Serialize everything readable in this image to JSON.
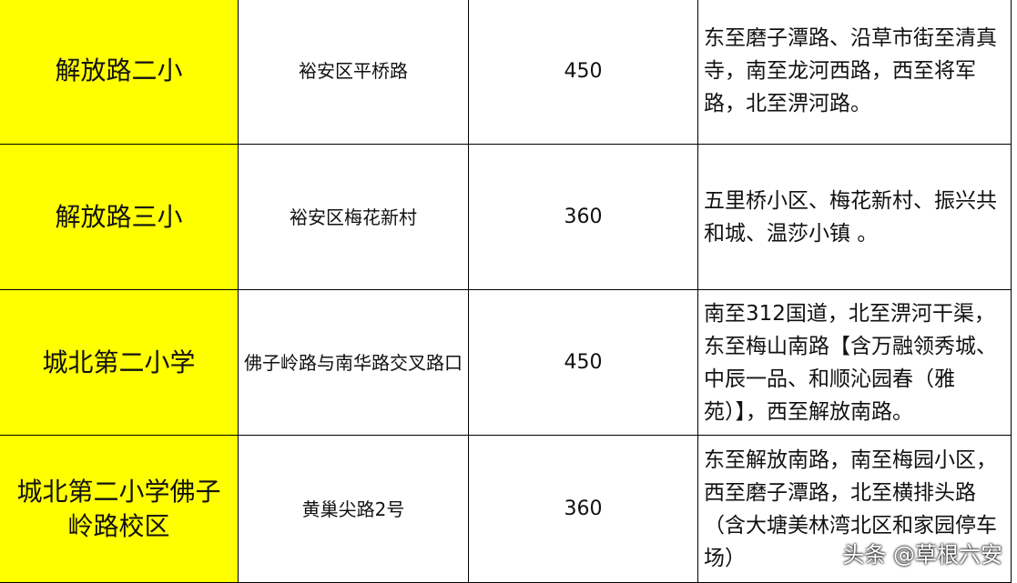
{
  "table": {
    "rows": [
      [
        "解放路二小",
        "裕安区平桥路",
        450,
        "东至磨子潭路、沿草市街至清真寺，南至龙河西路，西至将军路，北至淠河路。"
      ],
      [
        "解放路三小",
        "裕安区梅花新村",
        360,
        "五里桥小区、梅花新村、振兴共和城、温莎小镇 。"
      ],
      [
        "城北第二小学",
        "佛子岭路与南华路交叉路口",
        450,
        "南至312国道，北至淠河干渠，东至梅山南路【含万融领秀城、中辰一品、和顺沁园春（雅苑）】，西至解放南路。"
      ],
      [
        "城北第二小学佛子岭路校区",
        "黄巢尖路2号",
        360,
        "东至解放南路，南至梅园小区，西至磨子潭路，北至横排头路（含大塘美林湾北区和家园停车场）"
      ]
    ]
  },
  "watermark": "头条 @草根六安"
}
